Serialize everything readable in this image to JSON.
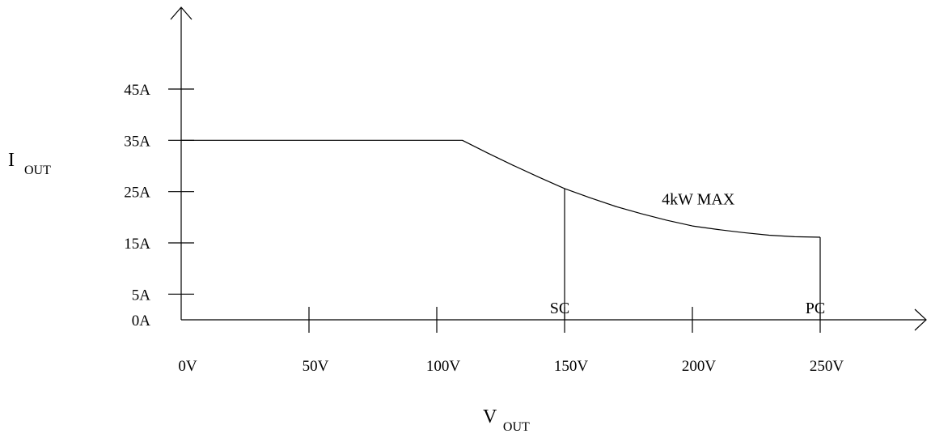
{
  "chart_data": {
    "type": "line",
    "title": "",
    "xlabel": {
      "main": "V",
      "sub": "OUT"
    },
    "ylabel": {
      "main": "I",
      "sub": "OUT"
    },
    "xlim": [
      0,
      250
    ],
    "ylim": [
      0,
      45
    ],
    "x_ticks": [
      {
        "value": 0,
        "label": "0V"
      },
      {
        "value": 50,
        "label": "50V"
      },
      {
        "value": 100,
        "label": "100V"
      },
      {
        "value": 150,
        "label": "150V"
      },
      {
        "value": 200,
        "label": "200V"
      },
      {
        "value": 250,
        "label": "250V"
      }
    ],
    "y_ticks": [
      {
        "value": 0,
        "label": "0A"
      },
      {
        "value": 5,
        "label": "5A"
      },
      {
        "value": 15,
        "label": "15A"
      },
      {
        "value": 25,
        "label": "25A"
      },
      {
        "value": 35,
        "label": "35A"
      },
      {
        "value": 45,
        "label": "45A"
      }
    ],
    "grid": false,
    "series": [
      {
        "style": "solid",
        "x": [
          0,
          110,
          120,
          130,
          140,
          150,
          160,
          170,
          180,
          190,
          200,
          210,
          220,
          230,
          240,
          250
        ],
        "y": [
          35,
          35,
          32.5,
          30.1,
          27.8,
          25.6,
          23.8,
          22.1,
          20.7,
          19.4,
          18.3,
          17.6,
          17.0,
          16.5,
          16.2,
          16.1
        ]
      }
    ],
    "verticals": [
      {
        "x": 150,
        "y_top": 25.6,
        "label": "SC"
      },
      {
        "x": 250,
        "y_top": 16.1,
        "label": "PC"
      }
    ],
    "annotations": [
      {
        "text": "4kW MAX",
        "x": 188,
        "y": 22.5
      }
    ]
  }
}
